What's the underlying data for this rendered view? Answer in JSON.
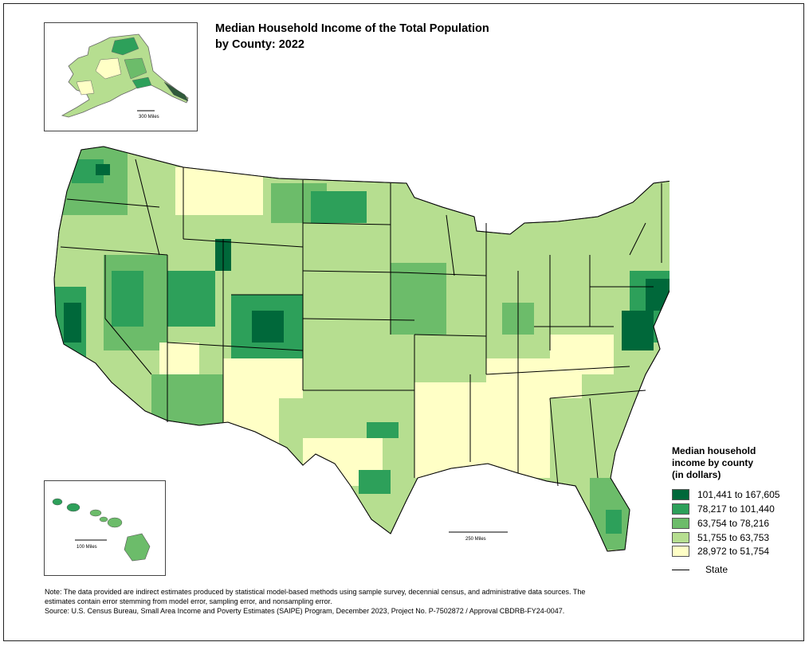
{
  "title": {
    "line1": "Median Household Income of the Total Population",
    "line2": "by County: 2022"
  },
  "legend": {
    "title_line1": "Median household",
    "title_line2": "income by county",
    "title_line3": "(in dollars)",
    "classes": [
      {
        "label": "101,441 to 167,605",
        "color": "#00683a"
      },
      {
        "label": "78,217 to 101,440",
        "color": "#2da05a"
      },
      {
        "label": "63,754 to 78,216",
        "color": "#6cbc6a"
      },
      {
        "label": "51,755 to 63,753",
        "color": "#b6de90"
      },
      {
        "label": "28,972 to 51,754",
        "color": "#ffffc6"
      }
    ],
    "state_label": "State"
  },
  "insets": {
    "alaska_scale": "300 Miles",
    "hawaii_scale": "100    Miles"
  },
  "main_scale": "250 Miles",
  "note": {
    "line1": "Note: The data provided are indirect estimates produced by statistical model-based methods using sample survey, decennial census, and administrative data sources. The",
    "line2": "estimates contain error stemming from model error, sampling error, and nonsampling error.",
    "line3": "Source: U.S. Census Bureau, Small Area Income and Poverty Estimates (SAIPE) Program, December 2023, Project No. P-7502872 / Approval CBDRB-FY24-0047."
  }
}
